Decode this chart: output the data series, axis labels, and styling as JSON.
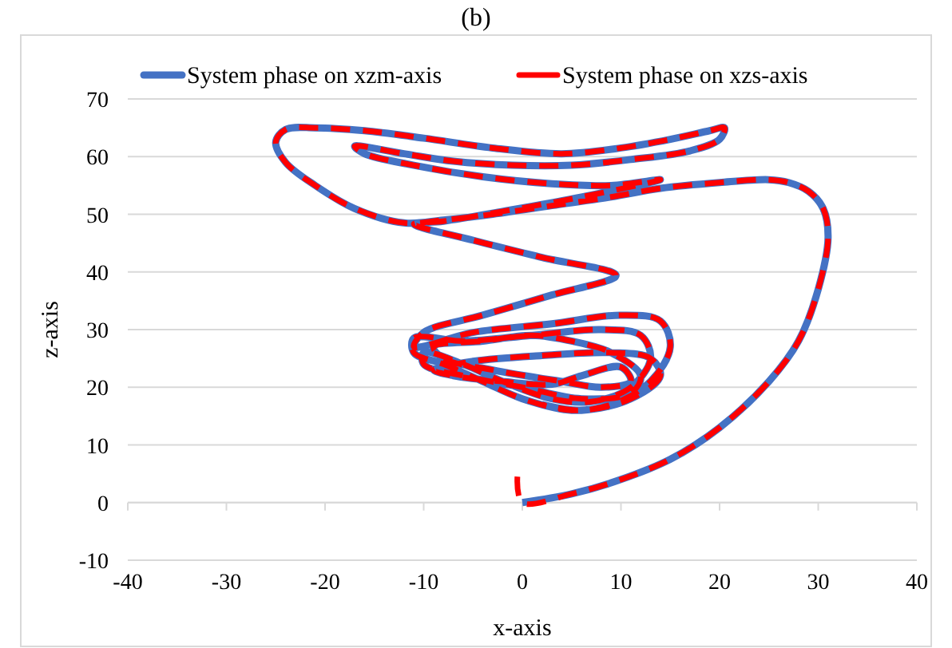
{
  "chart_data": {
    "type": "line",
    "title": "(b)",
    "xlabel": "x-axis",
    "ylabel": "z-axis",
    "xlim": [
      -40,
      40
    ],
    "xticks": [
      -40,
      -30,
      -20,
      -10,
      0,
      10,
      20,
      30,
      40
    ],
    "ylim": [
      -10,
      70
    ],
    "yticks": [
      -10,
      0,
      10,
      20,
      30,
      40,
      50,
      60,
      70
    ],
    "grid": "y",
    "legend": "top",
    "series": [
      {
        "name": "System phase on xzm-axis",
        "color": "#4472c4",
        "line_style": "solid",
        "x": [
          0,
          5,
          10,
          15,
          20,
          25,
          28,
          30,
          31,
          30.5,
          29,
          27,
          25,
          20,
          14,
          9,
          3,
          -3,
          -8,
          -12,
          -17,
          -21,
          -24,
          -25,
          -24,
          -21,
          -16,
          -10,
          -3,
          4,
          10,
          15,
          19,
          20.5,
          20,
          17,
          11,
          5,
          -1,
          -7,
          -12,
          -17,
          -16,
          -11,
          -4,
          3,
          9,
          14,
          6,
          -2,
          -8,
          -11,
          -5,
          2,
          9.5,
          3,
          -4,
          -10,
          -11,
          -5,
          3,
          10,
          14,
          15,
          13,
          9,
          5,
          0,
          -4,
          -8,
          -11,
          -11,
          -6,
          1,
          8,
          12,
          13,
          11,
          7,
          3,
          -2,
          -6,
          -10,
          -10,
          -6,
          0,
          6,
          11,
          12,
          9,
          5,
          1,
          -4,
          -9,
          -8,
          -3,
          4,
          8,
          11,
          10,
          6,
          3,
          -2,
          -7,
          -9,
          -5,
          2,
          9,
          13,
          14,
          11,
          6,
          2
        ],
        "values": [
          0,
          1.5,
          4,
          7.5,
          13,
          21,
          28,
          37,
          46,
          51,
          54,
          55.5,
          56,
          55.5,
          54.5,
          53,
          51.5,
          50,
          49,
          48.5,
          51,
          55,
          59,
          62.5,
          64.7,
          65,
          64.5,
          63.2,
          61.5,
          60.5,
          61.5,
          63,
          64.5,
          65,
          63,
          61,
          59.5,
          58.5,
          58.5,
          59.2,
          60.5,
          61.8,
          60.5,
          58.5,
          56.5,
          55.3,
          55,
          56,
          53,
          50.5,
          48.8,
          48.3,
          45.5,
          42.5,
          39.4,
          36,
          32.5,
          29.5,
          27,
          29.5,
          31,
          32.5,
          31.5,
          27,
          21,
          17,
          16,
          18,
          21,
          24,
          26,
          28.5,
          28,
          29,
          30,
          29,
          25,
          20,
          17.5,
          18,
          21,
          24,
          26,
          24,
          22,
          20,
          18,
          19,
          22,
          26,
          28,
          29,
          28,
          27,
          25,
          23,
          21,
          20,
          21,
          23.5,
          22,
          20.5,
          21,
          22,
          23,
          24.5,
          25.5,
          26,
          25,
          22,
          18,
          16,
          17
        ]
      },
      {
        "name": "System phase on xzs-axis",
        "color": "#ff0000",
        "line_style": "dashed",
        "x": [
          -0.5,
          0,
          5,
          10,
          15,
          20,
          25,
          28,
          30,
          31,
          30.5,
          29,
          27,
          25,
          20,
          14,
          9,
          3,
          -3,
          -8,
          -12,
          -17,
          -21,
          -24,
          -25,
          -24,
          -21,
          -16,
          -10,
          -3,
          4,
          10,
          15,
          19,
          20.5,
          20,
          17,
          11,
          5,
          -1,
          -7,
          -12,
          -17,
          -16,
          -11,
          -4,
          3,
          9,
          14,
          6,
          -2,
          -8,
          -11,
          -5,
          2,
          9.5,
          3,
          -4,
          -10,
          -11,
          -5,
          3,
          10,
          14,
          15,
          13,
          9,
          5,
          0,
          -4,
          -8,
          -11,
          -11,
          -6,
          1,
          8,
          12,
          13,
          11,
          7,
          3,
          -2,
          -6,
          -10,
          -10,
          -6,
          0,
          6,
          11,
          12,
          9,
          5,
          1,
          -4,
          -9,
          -8,
          -3,
          4,
          8,
          11,
          10,
          6,
          3,
          -2,
          -7,
          -9,
          -5,
          2,
          9,
          13,
          14,
          11,
          6,
          2
        ],
        "values": [
          4.5,
          0,
          1.5,
          4,
          7.5,
          13,
          21,
          28,
          37,
          46,
          51,
          54,
          55.5,
          56,
          55.5,
          54.5,
          53,
          51.5,
          50,
          49,
          48.5,
          51,
          55,
          59,
          62.5,
          64.7,
          65,
          64.5,
          63.2,
          61.5,
          60.5,
          61.5,
          63,
          64.5,
          65,
          63,
          61,
          59.5,
          58.5,
          58.5,
          59.2,
          60.5,
          61.8,
          60.5,
          58.5,
          56.5,
          55.3,
          55,
          56,
          53,
          50.5,
          48.8,
          48.3,
          45.5,
          42.5,
          39.4,
          36,
          32.5,
          29.5,
          27,
          29.5,
          31,
          32.5,
          31.5,
          27,
          21,
          17,
          16,
          18,
          21,
          24,
          26,
          28.5,
          28,
          29,
          30,
          29,
          25,
          20,
          17.5,
          18,
          21,
          24,
          26,
          24,
          22,
          20,
          18,
          19,
          22,
          26,
          28,
          29,
          28,
          27,
          25,
          23,
          21,
          20,
          21,
          23.5,
          22,
          20.5,
          21,
          22,
          23,
          24.5,
          25.5,
          26,
          25,
          22,
          18,
          16,
          17
        ]
      }
    ]
  }
}
